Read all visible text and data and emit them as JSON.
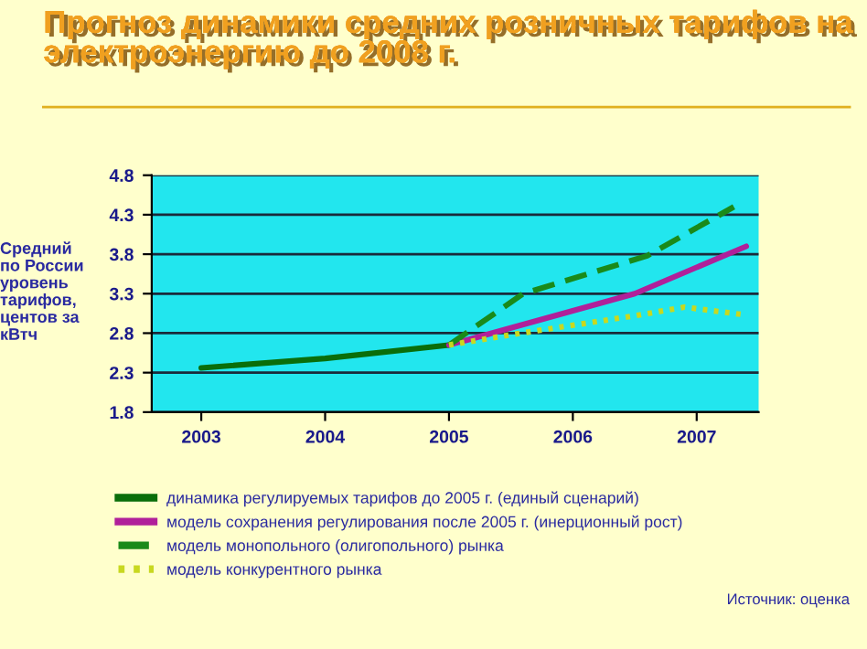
{
  "chart_data": {
    "type": "line",
    "title": "Прогноз динамики средних розничных тарифов на электроэнергию до 2008 г.",
    "ylabel": "Средний\nпо России\nуровень\nтарифов,\nцентов за\nкВтч",
    "annotations": [
      "Источник: оценка"
    ],
    "series": [
      {
        "name": "динамика регулируемых тарифов до 2005 г. (единый сценарий)",
        "color": "#0a6e0a",
        "line_style": "solid",
        "x": [
          2003,
          2004,
          2005
        ],
        "values": [
          2.36,
          2.48,
          2.65
        ]
      },
      {
        "name": "модель сохранения регулирования после 2005 г. (инерционный рост)",
        "color": "#b0209a",
        "line_style": "solid",
        "x": [
          2005,
          2006.5,
          2007.4
        ],
        "values": [
          2.65,
          3.3,
          3.9
        ]
      },
      {
        "name": "модель монопольного (олигопольного) рынка",
        "color": "#1a8a1a",
        "line_style": "dashed",
        "x": [
          2005,
          2005.6,
          2006.6,
          2007.3
        ],
        "values": [
          2.65,
          3.3,
          3.78,
          4.4
        ]
      },
      {
        "name": "модель конкурентного рынка",
        "color": "#c8d820",
        "line_style": "dotted",
        "x": [
          2005,
          2005.5,
          2006,
          2006.5,
          2006.9,
          2007.4
        ],
        "values": [
          2.65,
          2.78,
          2.9,
          3.02,
          3.13,
          3.03
        ]
      }
    ],
    "xlim": [
      2002.6,
      2007.5
    ],
    "xticks": [
      2003,
      2004,
      2005,
      2006,
      2007
    ],
    "ylim": [
      1.8,
      4.8
    ],
    "yticks": [
      1.8,
      2.3,
      2.8,
      3.3,
      3.8,
      4.3,
      4.8
    ],
    "grid": "y",
    "legend": "bottom",
    "marker": "none"
  }
}
